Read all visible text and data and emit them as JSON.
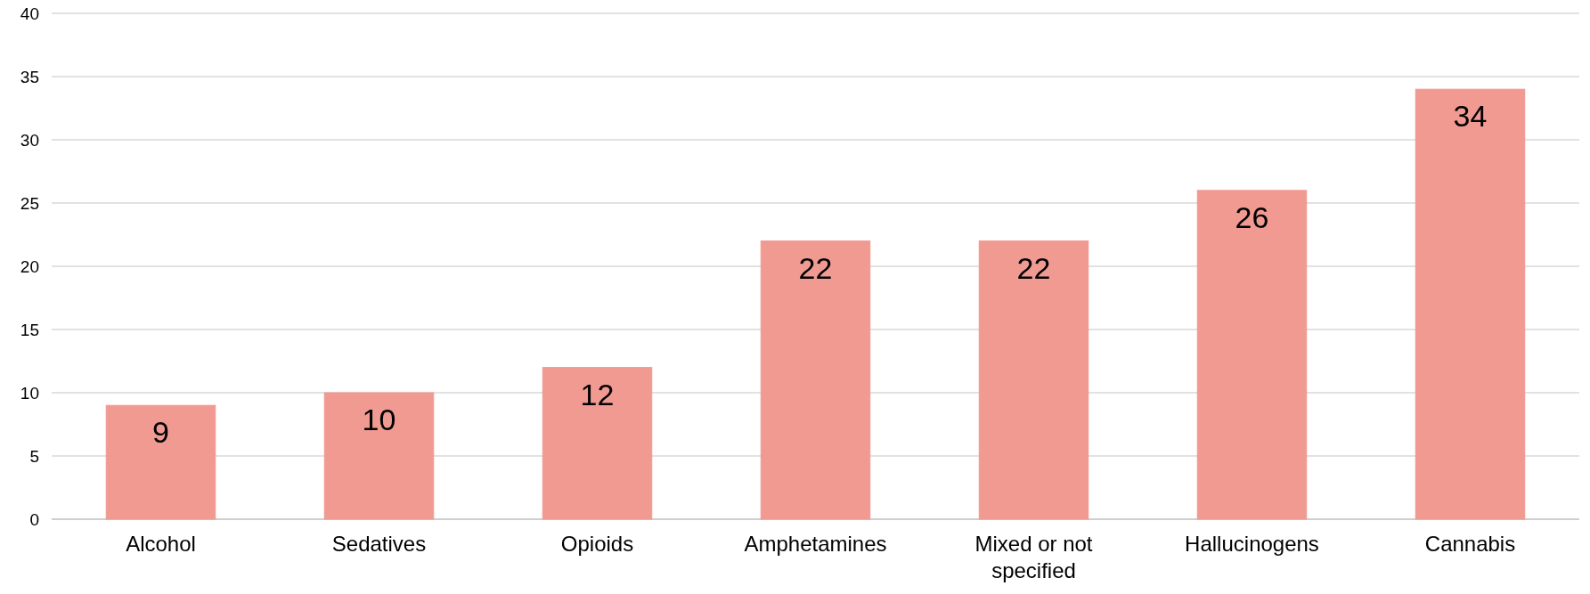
{
  "chart_data": {
    "type": "bar",
    "categories": [
      "Alcohol",
      "Sedatives",
      "Opioids",
      "Amphetamines",
      "Mixed or not specified",
      "Hallucinogens",
      "Cannabis"
    ],
    "values": [
      9,
      10,
      12,
      22,
      22,
      26,
      34
    ],
    "color": "#f09a92",
    "ylim": [
      0,
      40
    ],
    "yticks": [
      0,
      5,
      10,
      15,
      20,
      25,
      30,
      35,
      40
    ],
    "grid": "y",
    "data_labels": true
  }
}
